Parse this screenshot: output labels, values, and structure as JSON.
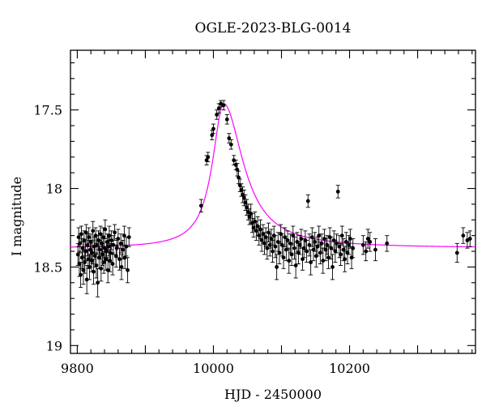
{
  "chart_data": {
    "type": "scatter",
    "title": "OGLE-2023-BLG-0014",
    "xlabel": "HJD - 2450000",
    "ylabel": "I magnitude",
    "xlim": [
      9790,
      10385
    ],
    "ylim": [
      19.05,
      17.12
    ],
    "y_inverted": true,
    "grid": false,
    "x_ticks": [
      9800,
      10000,
      10200
    ],
    "y_ticks": [
      17.5,
      18,
      18.5,
      19
    ],
    "x_tick_labels": [
      "9800",
      "10000",
      "10200"
    ],
    "y_tick_labels": [
      "17.5",
      "18",
      "18.5",
      "19"
    ],
    "colors": {
      "data": "#000000",
      "model": "#ff00ff"
    },
    "model": {
      "label": "",
      "baseline_mag": 18.38,
      "peak_mag": 17.46,
      "t0": 10015,
      "tE_rise": 20,
      "tE_fall": 35
    },
    "series": [
      {
        "kind": "points",
        "points": [
          [
            9801,
            18.42,
            0.07
          ],
          [
            9802,
            18.31,
            0.06
          ],
          [
            9803,
            18.48,
            0.08
          ],
          [
            9804,
            18.35,
            0.06
          ],
          [
            9805,
            18.55,
            0.08
          ],
          [
            9806,
            18.29,
            0.05
          ],
          [
            9807,
            18.44,
            0.07
          ],
          [
            9808,
            18.38,
            0.06
          ],
          [
            9809,
            18.52,
            0.09
          ],
          [
            9810,
            18.33,
            0.06
          ],
          [
            9811,
            18.47,
            0.07
          ],
          [
            9812,
            18.4,
            0.06
          ],
          [
            9813,
            18.28,
            0.05
          ],
          [
            9814,
            18.58,
            0.09
          ],
          [
            9815,
            18.36,
            0.07
          ],
          [
            9816,
            18.45,
            0.06
          ],
          [
            9817,
            18.31,
            0.06
          ],
          [
            9818,
            18.5,
            0.08
          ],
          [
            9819,
            18.39,
            0.06
          ],
          [
            9820,
            18.34,
            0.05
          ],
          [
            9821,
            18.46,
            0.07
          ],
          [
            9822,
            18.41,
            0.07
          ],
          [
            9823,
            18.27,
            0.06
          ],
          [
            9824,
            18.53,
            0.08
          ],
          [
            9825,
            18.37,
            0.06
          ],
          [
            9826,
            18.43,
            0.07
          ],
          [
            9827,
            18.3,
            0.05
          ],
          [
            9828,
            18.49,
            0.08
          ],
          [
            9829,
            18.36,
            0.06
          ],
          [
            9830,
            18.6,
            0.09
          ],
          [
            9831,
            18.33,
            0.06
          ],
          [
            9832,
            18.44,
            0.07
          ],
          [
            9833,
            18.39,
            0.06
          ],
          [
            9834,
            18.29,
            0.05
          ],
          [
            9835,
            18.51,
            0.08
          ],
          [
            9836,
            18.35,
            0.06
          ],
          [
            9837,
            18.42,
            0.07
          ],
          [
            9838,
            18.31,
            0.06
          ],
          [
            9839,
            18.47,
            0.07
          ],
          [
            9840,
            18.38,
            0.06
          ],
          [
            9841,
            18.26,
            0.06
          ],
          [
            9842,
            18.45,
            0.07
          ],
          [
            9843,
            18.4,
            0.06
          ],
          [
            9844,
            18.34,
            0.05
          ],
          [
            9845,
            18.52,
            0.08
          ],
          [
            9846,
            18.37,
            0.06
          ],
          [
            9847,
            18.3,
            0.06
          ],
          [
            9848,
            18.46,
            0.07
          ],
          [
            9849,
            18.41,
            0.06
          ],
          [
            9850,
            18.33,
            0.06
          ],
          [
            9852,
            18.48,
            0.07
          ],
          [
            9853,
            18.36,
            0.06
          ],
          [
            9855,
            18.28,
            0.05
          ],
          [
            9857,
            18.43,
            0.07
          ],
          [
            9858,
            18.38,
            0.06
          ],
          [
            9860,
            18.32,
            0.06
          ],
          [
            9862,
            18.45,
            0.07
          ],
          [
            9864,
            18.35,
            0.06
          ],
          [
            9865,
            18.5,
            0.08
          ],
          [
            9867,
            18.39,
            0.06
          ],
          [
            9869,
            18.3,
            0.06
          ],
          [
            9870,
            18.44,
            0.07
          ],
          [
            9872,
            18.37,
            0.06
          ],
          [
            9874,
            18.52,
            0.08
          ],
          [
            9876,
            18.31,
            0.06
          ],
          [
            9982,
            18.11,
            0.04
          ],
          [
            9990,
            17.82,
            0.03
          ],
          [
            9992,
            17.8,
            0.03
          ],
          [
            9998,
            17.66,
            0.03
          ],
          [
            10000,
            17.62,
            0.03
          ],
          [
            10005,
            17.53,
            0.03
          ],
          [
            10008,
            17.49,
            0.03
          ],
          [
            10011,
            17.46,
            0.02
          ],
          [
            10015,
            17.47,
            0.03
          ],
          [
            10020,
            17.56,
            0.03
          ],
          [
            10023,
            17.68,
            0.03
          ],
          [
            10026,
            17.72,
            0.03
          ],
          [
            10030,
            17.82,
            0.03
          ],
          [
            10033,
            17.85,
            0.03
          ],
          [
            10035,
            17.88,
            0.04
          ],
          [
            10037,
            17.93,
            0.04
          ],
          [
            10039,
            17.98,
            0.04
          ],
          [
            10041,
            18.01,
            0.04
          ],
          [
            10043,
            18.04,
            0.05
          ],
          [
            10045,
            18.06,
            0.05
          ],
          [
            10047,
            18.09,
            0.05
          ],
          [
            10049,
            18.12,
            0.05
          ],
          [
            10051,
            18.15,
            0.05
          ],
          [
            10053,
            18.18,
            0.05
          ],
          [
            10055,
            18.16,
            0.06
          ],
          [
            10057,
            18.22,
            0.06
          ],
          [
            10059,
            18.25,
            0.06
          ],
          [
            10061,
            18.21,
            0.06
          ],
          [
            10063,
            18.27,
            0.06
          ],
          [
            10065,
            18.24,
            0.06
          ],
          [
            10067,
            18.3,
            0.06
          ],
          [
            10069,
            18.26,
            0.06
          ],
          [
            10071,
            18.33,
            0.07
          ],
          [
            10073,
            18.29,
            0.06
          ],
          [
            10075,
            18.35,
            0.07
          ],
          [
            10077,
            18.31,
            0.06
          ],
          [
            10079,
            18.38,
            0.07
          ],
          [
            10081,
            18.28,
            0.06
          ],
          [
            10083,
            18.36,
            0.07
          ],
          [
            10085,
            18.32,
            0.06
          ],
          [
            10087,
            18.4,
            0.07
          ],
          [
            10089,
            18.3,
            0.06
          ],
          [
            10091,
            18.37,
            0.07
          ],
          [
            10093,
            18.5,
            0.08
          ],
          [
            10095,
            18.34,
            0.06
          ],
          [
            10097,
            18.41,
            0.07
          ],
          [
            10099,
            18.29,
            0.06
          ],
          [
            10101,
            18.36,
            0.07
          ],
          [
            10103,
            18.44,
            0.07
          ],
          [
            10105,
            18.31,
            0.06
          ],
          [
            10107,
            18.39,
            0.07
          ],
          [
            10109,
            18.33,
            0.06
          ],
          [
            10111,
            18.46,
            0.08
          ],
          [
            10113,
            18.35,
            0.06
          ],
          [
            10115,
            18.42,
            0.07
          ],
          [
            10117,
            18.3,
            0.06
          ],
          [
            10119,
            18.38,
            0.07
          ],
          [
            10121,
            18.49,
            0.08
          ],
          [
            10123,
            18.34,
            0.06
          ],
          [
            10125,
            18.41,
            0.07
          ],
          [
            10127,
            18.36,
            0.06
          ],
          [
            10129,
            18.32,
            0.06
          ],
          [
            10131,
            18.45,
            0.07
          ],
          [
            10133,
            18.38,
            0.06
          ],
          [
            10135,
            18.33,
            0.06
          ],
          [
            10137,
            18.4,
            0.07
          ],
          [
            10139,
            18.08,
            0.04
          ],
          [
            10141,
            18.36,
            0.07
          ],
          [
            10143,
            18.47,
            0.08
          ],
          [
            10145,
            18.31,
            0.06
          ],
          [
            10147,
            18.39,
            0.07
          ],
          [
            10149,
            18.34,
            0.06
          ],
          [
            10151,
            18.43,
            0.07
          ],
          [
            10153,
            18.37,
            0.06
          ],
          [
            10155,
            18.3,
            0.06
          ],
          [
            10157,
            18.41,
            0.07
          ],
          [
            10159,
            18.35,
            0.06
          ],
          [
            10161,
            18.46,
            0.08
          ],
          [
            10163,
            18.32,
            0.06
          ],
          [
            10165,
            18.39,
            0.07
          ],
          [
            10167,
            18.36,
            0.06
          ],
          [
            10169,
            18.44,
            0.07
          ],
          [
            10171,
            18.31,
            0.06
          ],
          [
            10173,
            18.38,
            0.07
          ],
          [
            10175,
            18.5,
            0.08
          ],
          [
            10177,
            18.33,
            0.06
          ],
          [
            10179,
            18.4,
            0.07
          ],
          [
            10181,
            18.35,
            0.06
          ],
          [
            10183,
            18.02,
            0.04
          ],
          [
            10185,
            18.37,
            0.07
          ],
          [
            10187,
            18.42,
            0.07
          ],
          [
            10189,
            18.3,
            0.06
          ],
          [
            10191,
            18.39,
            0.07
          ],
          [
            10193,
            18.45,
            0.08
          ],
          [
            10195,
            18.34,
            0.06
          ],
          [
            10197,
            18.41,
            0.07
          ],
          [
            10199,
            18.36,
            0.06
          ],
          [
            10201,
            18.32,
            0.06
          ],
          [
            10203,
            18.44,
            0.07
          ],
          [
            10205,
            18.38,
            0.06
          ],
          [
            10220,
            18.36,
            0.06
          ],
          [
            10224,
            18.4,
            0.06
          ],
          [
            10227,
            18.32,
            0.06
          ],
          [
            10230,
            18.34,
            0.06
          ],
          [
            10238,
            18.39,
            0.07
          ],
          [
            10255,
            18.35,
            0.05
          ],
          [
            10358,
            18.41,
            0.06
          ],
          [
            10367,
            18.3,
            0.05
          ],
          [
            10373,
            18.33,
            0.05
          ],
          [
            10377,
            18.32,
            0.05
          ]
        ]
      }
    ]
  }
}
